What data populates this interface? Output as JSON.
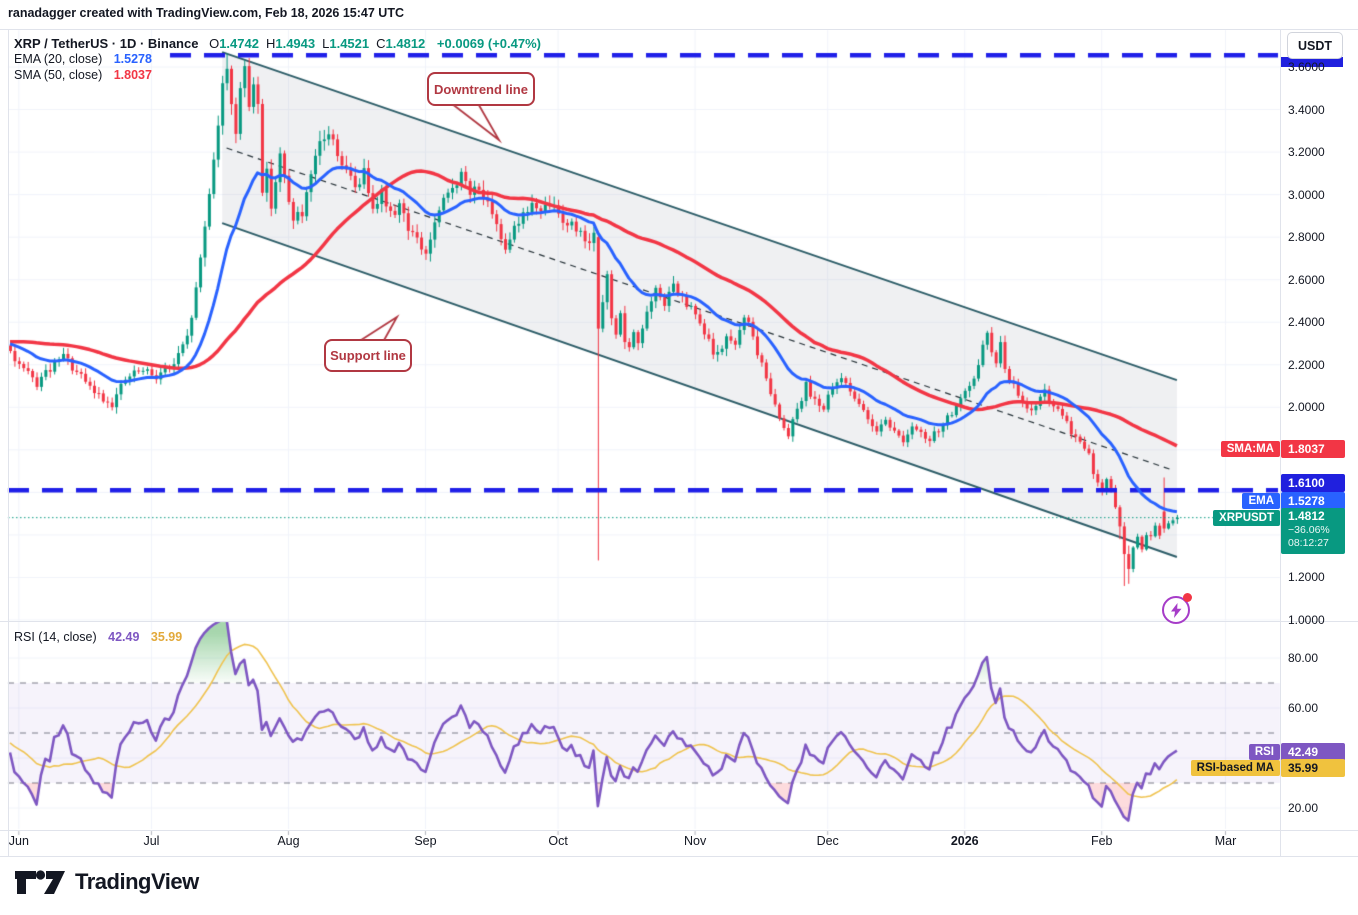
{
  "header": {
    "text": "ranadagger created with TradingView.com, Feb 18, 2026 15:47 UTC"
  },
  "legend": {
    "symbol": "XRP / TetherUS · 1D · Binance",
    "ohlc": [
      {
        "k": "O",
        "v": "1.4742"
      },
      {
        "k": "H",
        "v": "1.4943"
      },
      {
        "k": "L",
        "v": "1.4521"
      },
      {
        "k": "C",
        "v": "1.4812"
      }
    ],
    "change": "+0.0069 (+0.47%)",
    "ema_label": "EMA (20, close)",
    "ema_value": "1.5278",
    "sma_label": "SMA (50, close)",
    "sma_value": "1.8037"
  },
  "rsi_legend": {
    "label": "RSI (14, close)",
    "value": "42.49",
    "ma_value": "35.99"
  },
  "annotations": {
    "downtrend": "Downtrend line",
    "support": "Support line"
  },
  "price_axis": {
    "currency_button": "USDT",
    "ticks": [
      {
        "label": "3.6000",
        "value": 3.6
      },
      {
        "label": "3.4000",
        "value": 3.4
      },
      {
        "label": "3.2000",
        "value": 3.2
      },
      {
        "label": "3.0000",
        "value": 3.0
      },
      {
        "label": "2.8000",
        "value": 2.8
      },
      {
        "label": "2.6000",
        "value": 2.6
      },
      {
        "label": "2.4000",
        "value": 2.4
      },
      {
        "label": "2.2000",
        "value": 2.2
      },
      {
        "label": "2.0000",
        "value": 2.0
      },
      {
        "label": "1.2000",
        "value": 1.2
      },
      {
        "label": "1.0000",
        "value": 1.0
      }
    ]
  },
  "rsi_axis": {
    "ticks": [
      {
        "label": "80.00",
        "value": 80
      },
      {
        "label": "60.00",
        "value": 60
      },
      {
        "label": "20.00",
        "value": 20
      }
    ]
  },
  "axis_flags": {
    "sma": {
      "tag": "SMA:MA",
      "value": "1.8037",
      "bg": "#F23645",
      "fg": "#ffffff",
      "price": 1.8037
    },
    "level": {
      "tag": "",
      "value": "1.6100",
      "bg": "#2020DE",
      "fg": "#ffffff",
      "y": 483
    },
    "ema": {
      "tag": "EMA",
      "value": "1.5278",
      "bg": "#2962FF",
      "fg": "#ffffff",
      "y": 501
    },
    "last": {
      "tag": "XRPUSDT",
      "value": "1.4812",
      "sub1": "−36.06%",
      "sub2": "08:12:27",
      "bg": "#089981",
      "fg": "#ffffff",
      "top": 509
    },
    "rsi": {
      "tag": "RSI",
      "value": "42.49",
      "bg": "#7E57C2",
      "fg": "#ffffff",
      "rsi": 42.49
    },
    "rsi_ma": {
      "tag": "RSI-based MA",
      "value": "35.99",
      "bg": "#F0C23E",
      "fg": "#131722",
      "rsi": 35.99
    }
  },
  "x_axis": {
    "months": [
      {
        "label": "Jun",
        "day": 2
      },
      {
        "label": "Jul",
        "day": 32
      },
      {
        "label": "Aug",
        "day": 63
      },
      {
        "label": "Sep",
        "day": 94
      },
      {
        "label": "Oct",
        "day": 124
      },
      {
        "label": "Nov",
        "day": 155
      },
      {
        "label": "Dec",
        "day": 185
      },
      {
        "label": "2026",
        "day": 216,
        "bold": true
      },
      {
        "label": "Feb",
        "day": 247
      },
      {
        "label": "Mar",
        "day": 275
      }
    ]
  },
  "footer": {
    "brand": "TradingView"
  },
  "colors": {
    "up": "#089981",
    "down": "#F23645",
    "ema": "#2962FF",
    "sma": "#F23645",
    "rsi": "#7E57C2",
    "rsi_ma": "#EFC350",
    "grid": "#F0F3FA",
    "border": "#E0E3EB",
    "channel": "#2D5D68",
    "channel_fill": "rgba(130,140,155,0.13)",
    "level_blue": "#1F1FE8",
    "last_dotted": "#089981",
    "mid_dash": "#263238",
    "band_fill": "rgba(126,87,194,0.07)",
    "band_line": "#787B86",
    "over_fill": "rgba(60,166,75,0.45)",
    "under_fill": "rgba(242,54,69,0.18)",
    "callout": "#B13842",
    "text": "#131722"
  },
  "chart_data": {
    "type": "candlestick",
    "symbol": "XRPUSDT",
    "pair": "XRP / TetherUS",
    "timeframe": "1D",
    "exchange": "Binance",
    "ohlc_current": {
      "open": 1.4742,
      "high": 1.4943,
      "low": 1.4521,
      "close": 1.4812,
      "change": 0.0069,
      "change_pct": 0.47
    },
    "indicators": {
      "ema20": 1.5278,
      "sma50": 1.8037,
      "rsi14": 42.49,
      "rsi_based_ma": 35.99
    },
    "levels": {
      "resistance_dashed": 3.655,
      "support_dashed": 1.61,
      "last_price": 1.4812,
      "pct_from_high": "−36.06%",
      "bar_countdown": "08:12:27"
    },
    "ylim": [
      0.97,
      3.75
    ],
    "rsi_ylim": [
      12,
      95
    ],
    "rsi_bands": [
      70,
      50,
      30
    ],
    "days_total": 265,
    "noise_seed": 9,
    "channel": {
      "start_day": 48,
      "end_day": 264,
      "top_prices": [
        3.67,
        2.128
      ],
      "bottom_prices": [
        2.866,
        1.296
      ],
      "mid_days": [
        49,
        263
      ],
      "mid_prices": [
        3.219,
        1.705
      ]
    },
    "prehistory_path": [
      [
        -60,
        2.08
      ],
      [
        -45,
        2.22
      ],
      [
        -30,
        2.38
      ],
      [
        -15,
        2.32
      ],
      [
        -2,
        2.28
      ]
    ],
    "price_path": [
      [
        0,
        2.26
      ],
      [
        3,
        2.17
      ],
      [
        6,
        2.11
      ],
      [
        9,
        2.18
      ],
      [
        12,
        2.24
      ],
      [
        15,
        2.16
      ],
      [
        18,
        2.09
      ],
      [
        21,
        2.04
      ],
      [
        23,
        2.02
      ],
      [
        26,
        2.13
      ],
      [
        29,
        2.17
      ],
      [
        33,
        2.15
      ],
      [
        37,
        2.2
      ],
      [
        40,
        2.32
      ],
      [
        42,
        2.55
      ],
      [
        44,
        2.85
      ],
      [
        46,
        3.18
      ],
      [
        48,
        3.5
      ],
      [
        49,
        3.6
      ],
      [
        50,
        3.44
      ],
      [
        51,
        3.3
      ],
      [
        52,
        3.5
      ],
      [
        53,
        3.57
      ],
      [
        54,
        3.42
      ],
      [
        55,
        3.52
      ],
      [
        56,
        3.45
      ],
      [
        57,
        3.02
      ],
      [
        58,
        3.1
      ],
      [
        59,
        2.96
      ],
      [
        61,
        3.18
      ],
      [
        63,
        2.96
      ],
      [
        64,
        2.9
      ],
      [
        66,
        2.9
      ],
      [
        68,
        3.07
      ],
      [
        70,
        3.24
      ],
      [
        72,
        3.29
      ],
      [
        74,
        3.2
      ],
      [
        76,
        3.1
      ],
      [
        78,
        3.04
      ],
      [
        80,
        3.1
      ],
      [
        82,
        2.96
      ],
      [
        84,
        3.01
      ],
      [
        86,
        2.9
      ],
      [
        88,
        2.96
      ],
      [
        90,
        2.85
      ],
      [
        92,
        2.78
      ],
      [
        94,
        2.72
      ],
      [
        96,
        2.86
      ],
      [
        98,
        2.96
      ],
      [
        100,
        3.04
      ],
      [
        102,
        3.09
      ],
      [
        104,
        3.0
      ],
      [
        106,
        3.05
      ],
      [
        108,
        2.94
      ],
      [
        110,
        2.84
      ],
      [
        112,
        2.76
      ],
      [
        114,
        2.86
      ],
      [
        116,
        2.9
      ],
      [
        118,
        2.96
      ],
      [
        120,
        2.9
      ],
      [
        122,
        2.96
      ],
      [
        124,
        2.91
      ],
      [
        126,
        2.87
      ],
      [
        128,
        2.84
      ],
      [
        130,
        2.8
      ],
      [
        132,
        2.8
      ],
      [
        133,
        2.37
      ],
      [
        134,
        2.5
      ],
      [
        135,
        2.6
      ],
      [
        136,
        2.44
      ],
      [
        137,
        2.35
      ],
      [
        138,
        2.42
      ],
      [
        139,
        2.31
      ],
      [
        140,
        2.26
      ],
      [
        141,
        2.36
      ],
      [
        142,
        2.31
      ],
      [
        144,
        2.44
      ],
      [
        146,
        2.54
      ],
      [
        148,
        2.49
      ],
      [
        150,
        2.57
      ],
      [
        152,
        2.5
      ],
      [
        154,
        2.46
      ],
      [
        156,
        2.39
      ],
      [
        158,
        2.3
      ],
      [
        160,
        2.24
      ],
      [
        162,
        2.33
      ],
      [
        164,
        2.28
      ],
      [
        166,
        2.44
      ],
      [
        168,
        2.33
      ],
      [
        170,
        2.19
      ],
      [
        172,
        2.08
      ],
      [
        174,
        1.95
      ],
      [
        176,
        1.88
      ],
      [
        178,
        2.0
      ],
      [
        180,
        2.1
      ],
      [
        182,
        2.04
      ],
      [
        184,
        2.0
      ],
      [
        186,
        2.08
      ],
      [
        188,
        2.14
      ],
      [
        190,
        2.09
      ],
      [
        192,
        2.0
      ],
      [
        194,
        1.95
      ],
      [
        196,
        1.9
      ],
      [
        198,
        1.95
      ],
      [
        200,
        1.88
      ],
      [
        202,
        1.85
      ],
      [
        204,
        1.9
      ],
      [
        206,
        1.87
      ],
      [
        208,
        1.84
      ],
      [
        210,
        1.9
      ],
      [
        212,
        1.95
      ],
      [
        214,
        2.0
      ],
      [
        216,
        2.06
      ],
      [
        218,
        2.12
      ],
      [
        220,
        2.3
      ],
      [
        221,
        2.34
      ],
      [
        222,
        2.27
      ],
      [
        223,
        2.2
      ],
      [
        224,
        2.29
      ],
      [
        225,
        2.2
      ],
      [
        226,
        2.14
      ],
      [
        228,
        2.05
      ],
      [
        230,
        1.98
      ],
      [
        232,
        2.02
      ],
      [
        234,
        2.07
      ],
      [
        236,
        2.0
      ],
      [
        238,
        1.95
      ],
      [
        240,
        1.89
      ],
      [
        242,
        1.84
      ],
      [
        244,
        1.77
      ],
      [
        245,
        1.7
      ],
      [
        246,
        1.64
      ],
      [
        247,
        1.6
      ],
      [
        248,
        1.66
      ],
      [
        249,
        1.61
      ],
      [
        250,
        1.54
      ],
      [
        251,
        1.44
      ],
      [
        252,
        1.31
      ],
      [
        253,
        1.24
      ],
      [
        254,
        1.33
      ],
      [
        255,
        1.38
      ],
      [
        256,
        1.34
      ],
      [
        257,
        1.41
      ],
      [
        258,
        1.38
      ],
      [
        259,
        1.43
      ],
      [
        260,
        1.4
      ],
      [
        261,
        1.43
      ],
      [
        262,
        1.45
      ],
      [
        263,
        1.46
      ],
      [
        264,
        1.4812
      ]
    ],
    "candle_overrides": [
      {
        "d": 49,
        "h": 3.664
      },
      {
        "d": 133,
        "o": 2.8,
        "h": 2.83,
        "l": 1.28,
        "c": 2.37
      },
      {
        "d": 251,
        "o": 1.53,
        "h": 1.54,
        "l": 1.38,
        "c": 1.44
      },
      {
        "d": 252,
        "o": 1.44,
        "h": 1.46,
        "l": 1.16,
        "c": 1.31
      },
      {
        "d": 253,
        "o": 1.31,
        "h": 1.35,
        "l": 1.17,
        "c": 1.24
      },
      {
        "d": 261,
        "o": 1.51,
        "h": 1.67,
        "l": 1.41,
        "c": 1.43
      },
      {
        "d": 264,
        "o": 1.4742,
        "h": 1.4943,
        "l": 1.4521,
        "c": 1.4812
      }
    ]
  }
}
